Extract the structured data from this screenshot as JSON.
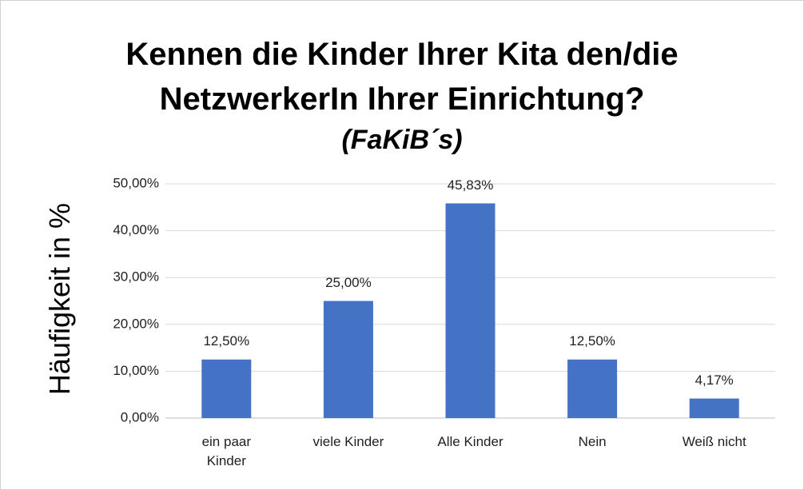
{
  "chart_data": {
    "type": "bar",
    "title": "Kennen die Kinder Ihrer Kita den/die NetzwerkerIn Ihrer Einrichtung?",
    "subtitle": "(FaKiB´s)",
    "y_label": "Häufigkeit in %",
    "categories": [
      "ein paar Kinder",
      "viele Kinder",
      "Alle Kinder",
      "Nein",
      "Weiß nicht"
    ],
    "values": [
      12.5,
      25,
      45.83,
      12.5,
      4.17
    ],
    "value_labels": [
      "12,50%",
      "25,00%",
      "45,83%",
      "12,50%",
      "4,17%"
    ],
    "color": "#4472c4",
    "ylim": [
      0,
      50
    ],
    "yticks": [
      {
        "value": 0,
        "label": "0,00%"
      },
      {
        "value": 10,
        "label": "10,00%"
      },
      {
        "value": 20,
        "label": "20,00%"
      },
      {
        "value": 30,
        "label": "30,00%"
      },
      {
        "value": 40,
        "label": "40,00%"
      },
      {
        "value": 50,
        "label": "50,00%"
      }
    ],
    "grid": true
  }
}
